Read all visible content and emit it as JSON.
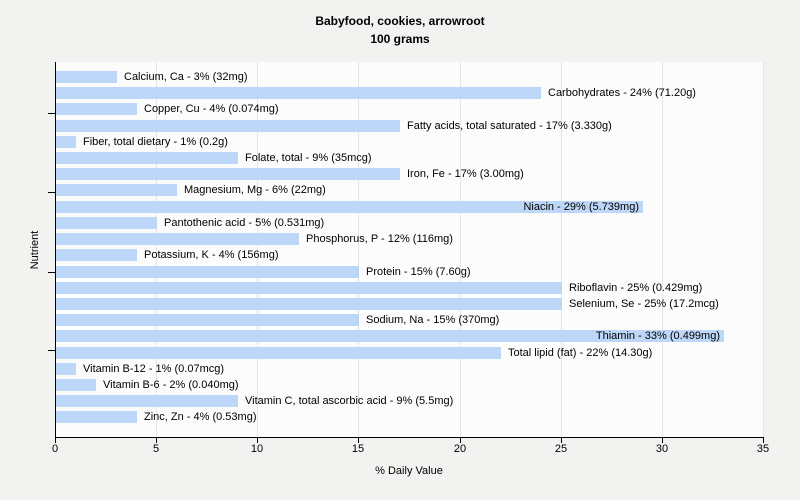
{
  "page": {
    "background": "#f2f2f0"
  },
  "chart_data": {
    "type": "bar",
    "orientation": "horizontal",
    "title": "Babyfood, cookies, arrowroot",
    "subtitle": "100 grams",
    "xlabel": "% Daily Value",
    "ylabel": "Nutrient",
    "xlim": [
      0,
      35
    ],
    "xticks": [
      0,
      5,
      10,
      15,
      20,
      25,
      30,
      35
    ],
    "grid": "vertical",
    "legend_position": "none",
    "colors": {
      "bar": "#bdd7f8",
      "plot_background": "#fcfcfc",
      "page_background": "#f2f2f0",
      "grid_line": "#e4e4e4",
      "axis_line": "#000000",
      "text": "#000000"
    },
    "bars": [
      {
        "nutrient": "Calcium, Ca",
        "percent": 3,
        "amount": "32mg",
        "label": "Calcium, Ca - 3% (32mg)"
      },
      {
        "nutrient": "Carbohydrates",
        "percent": 24,
        "amount": "71.20g",
        "label": "Carbohydrates - 24% (71.20g)"
      },
      {
        "nutrient": "Copper, Cu",
        "percent": 4,
        "amount": "0.074mg",
        "label": "Copper, Cu - 4% (0.074mg)"
      },
      {
        "nutrient": "Fatty acids, total saturated",
        "percent": 17,
        "amount": "3.330g",
        "label": "Fatty acids, total saturated - 17% (3.330g)"
      },
      {
        "nutrient": "Fiber, total dietary",
        "percent": 1,
        "amount": "0.2g",
        "label": "Fiber, total dietary - 1% (0.2g)"
      },
      {
        "nutrient": "Folate, total",
        "percent": 9,
        "amount": "35mcg",
        "label": "Folate, total - 9% (35mcg)"
      },
      {
        "nutrient": "Iron, Fe",
        "percent": 17,
        "amount": "3.00mg",
        "label": "Iron, Fe - 17% (3.00mg)"
      },
      {
        "nutrient": "Magnesium, Mg",
        "percent": 6,
        "amount": "22mg",
        "label": "Magnesium, Mg - 6% (22mg)"
      },
      {
        "nutrient": "Niacin",
        "percent": 29,
        "amount": "5.739mg",
        "label": "Niacin - 29% (5.739mg)"
      },
      {
        "nutrient": "Pantothenic acid",
        "percent": 5,
        "amount": "0.531mg",
        "label": "Pantothenic acid - 5% (0.531mg)"
      },
      {
        "nutrient": "Phosphorus, P",
        "percent": 12,
        "amount": "116mg",
        "label": "Phosphorus, P - 12% (116mg)"
      },
      {
        "nutrient": "Potassium, K",
        "percent": 4,
        "amount": "156mg",
        "label": "Potassium, K - 4% (156mg)"
      },
      {
        "nutrient": "Protein",
        "percent": 15,
        "amount": "7.60g",
        "label": "Protein - 15% (7.60g)"
      },
      {
        "nutrient": "Riboflavin",
        "percent": 25,
        "amount": "0.429mg",
        "label": "Riboflavin - 25% (0.429mg)"
      },
      {
        "nutrient": "Selenium, Se",
        "percent": 25,
        "amount": "17.2mcg",
        "label": "Selenium, Se - 25% (17.2mcg)"
      },
      {
        "nutrient": "Sodium, Na",
        "percent": 15,
        "amount": "370mg",
        "label": "Sodium, Na - 15% (370mg)"
      },
      {
        "nutrient": "Thiamin",
        "percent": 33,
        "amount": "0.499mg",
        "label": "Thiamin - 33% (0.499mg)"
      },
      {
        "nutrient": "Total lipid (fat)",
        "percent": 22,
        "amount": "14.30g",
        "label": "Total lipid (fat) - 22% (14.30g)"
      },
      {
        "nutrient": "Vitamin B-12",
        "percent": 1,
        "amount": "0.07mcg",
        "label": "Vitamin B-12 - 1% (0.07mcg)"
      },
      {
        "nutrient": "Vitamin B-6",
        "percent": 2,
        "amount": "0.040mg",
        "label": "Vitamin B-6 - 2% (0.040mg)"
      },
      {
        "nutrient": "Vitamin C, total ascorbic acid",
        "percent": 9,
        "amount": "5.5mg",
        "label": "Vitamin C, total ascorbic acid - 9% (5.5mg)"
      },
      {
        "nutrient": "Zinc, Zn",
        "percent": 4,
        "amount": "0.53mg",
        "label": "Zinc, Zn - 4% (0.53mg)"
      }
    ]
  }
}
